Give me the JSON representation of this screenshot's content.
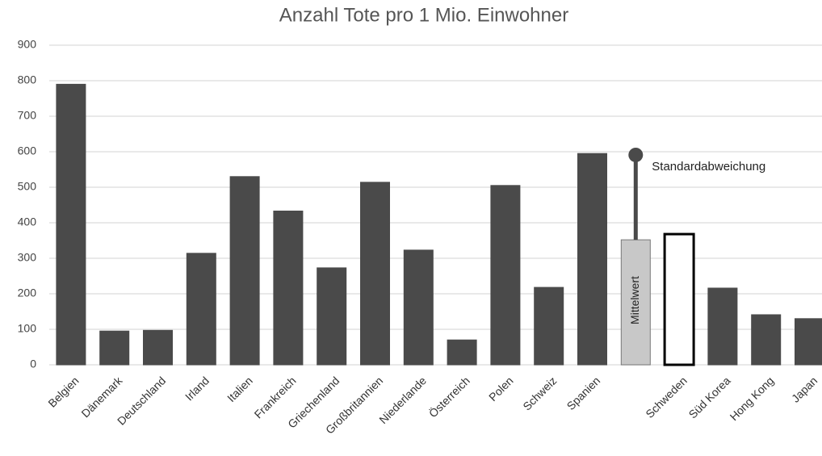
{
  "chart_data": {
    "type": "bar",
    "title": "Anzahl Tote pro 1 Mio. Einwohner",
    "categories": [
      "Belgien",
      "Dänemark",
      "Deutschland",
      "Irland",
      "Italien",
      "Frankreich",
      "Griechenland",
      "Großbritannien",
      "Niederlande",
      "Österreich",
      "Polen",
      "Schweiz",
      "Spanien",
      null,
      "Schweden",
      "Süd Korea",
      "Hong Kong",
      "Japan"
    ],
    "values": [
      790,
      95,
      97,
      314,
      530,
      433,
      273,
      514,
      323,
      70,
      505,
      218,
      595,
      352,
      368,
      216,
      141,
      130
    ],
    "errors": [
      null,
      null,
      null,
      null,
      null,
      null,
      null,
      null,
      null,
      null,
      null,
      null,
      null,
      239,
      null,
      null,
      null,
      null
    ],
    "colors": [
      "#4a4a4a",
      "#4a4a4a",
      "#4a4a4a",
      "#4a4a4a",
      "#4a4a4a",
      "#4a4a4a",
      "#4a4a4a",
      "#4a4a4a",
      "#4a4a4a",
      "#4a4a4a",
      "#4a4a4a",
      "#4a4a4a",
      "#4a4a4a",
      "#c8c8c8",
      "#ffffff",
      "#4a4a4a",
      "#4a4a4a",
      "#4a4a4a"
    ],
    "edge_colors": [
      "#4a4a4a",
      "#4a4a4a",
      "#4a4a4a",
      "#4a4a4a",
      "#4a4a4a",
      "#4a4a4a",
      "#4a4a4a",
      "#4a4a4a",
      "#4a4a4a",
      "#4a4a4a",
      "#4a4a4a",
      "#4a4a4a",
      "#4a4a4a",
      "#777777",
      "#000000",
      "#4a4a4a",
      "#4a4a4a",
      "#4a4a4a"
    ],
    "annotations": [
      {
        "text": "Standardabweichung"
      },
      {
        "text": "Mittelwert"
      }
    ],
    "ylim": [
      0,
      900
    ],
    "yticks": [
      0,
      100,
      200,
      300,
      400,
      500,
      600,
      700,
      800,
      900
    ],
    "grid": true
  }
}
